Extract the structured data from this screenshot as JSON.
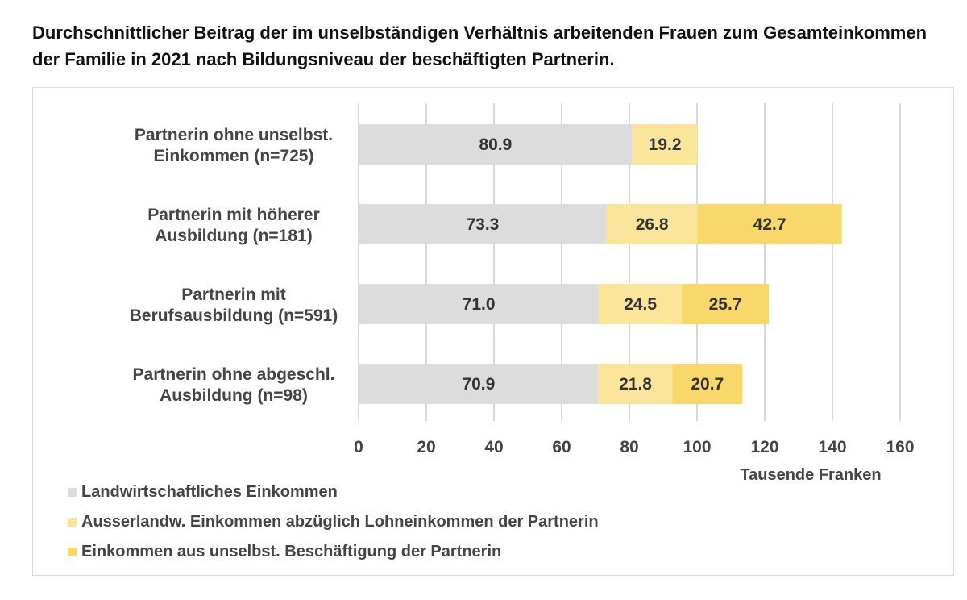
{
  "title": "Durchschnittlicher Beitrag der im unselbständigen Verhältnis arbeitenden Frauen zum Gesamteinkommen der Familie in 2021 nach Bildungsniveau der beschäftigten Partnerin.",
  "colors": {
    "landw": "#dcdcdc",
    "ausserlandw": "#fbe59a",
    "unselbst": "#f8d86a",
    "grid": "#d9d9d9"
  },
  "chart_data": {
    "type": "bar",
    "orientation": "horizontal",
    "stacked": true,
    "categories": [
      [
        "Partnerin ohne unselbst.",
        "Einkommen (n=725)"
      ],
      [
        "Partnerin mit höherer",
        "Ausbildung (n=181)"
      ],
      [
        "Partnerin mit",
        "Berufsausbildung (n=591)"
      ],
      [
        "Partnerin ohne abgeschl.",
        "Ausbildung (n=98)"
      ]
    ],
    "series": [
      {
        "name": "Landwirtschaftliches Einkommen",
        "color_key": "landw",
        "values": [
          80.9,
          73.3,
          71.0,
          70.9
        ],
        "labels": [
          "80.9",
          "73.3",
          "71.0",
          "70.9"
        ]
      },
      {
        "name": "Ausserlandw. Einkommen abzüglich Lohneinkommen der Partnerin",
        "color_key": "ausserlandw",
        "values": [
          19.2,
          26.8,
          24.5,
          21.8
        ],
        "labels": [
          "19.2",
          "26.8",
          "24.5",
          "21.8"
        ]
      },
      {
        "name": "Einkommen aus unselbst. Beschäftigung der Partnerin",
        "color_key": "unselbst",
        "values": [
          0,
          42.7,
          25.7,
          20.7
        ],
        "labels": [
          "",
          "42.7",
          "25.7",
          "20.7"
        ]
      }
    ],
    "xlim": [
      0,
      160
    ],
    "xticks": [
      "0",
      "20",
      "40",
      "60",
      "80",
      "100",
      "120",
      "140",
      "160"
    ],
    "xlabel": "Tausende Franken",
    "grid": true,
    "legend": "bottom-left"
  }
}
